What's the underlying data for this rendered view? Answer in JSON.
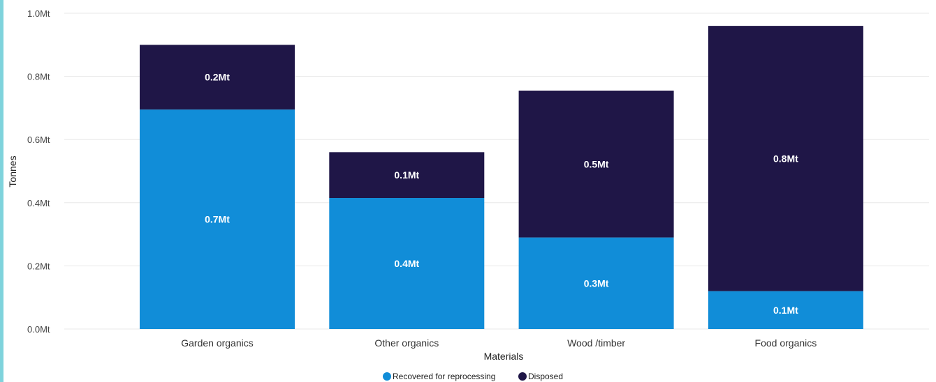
{
  "chart_data": {
    "type": "bar",
    "stacked": true,
    "xlabel": "Materials",
    "ylabel": "Tonnes",
    "ylim": [
      0,
      1.0
    ],
    "yticks": [
      "0.0Mt",
      "0.2Mt",
      "0.4Mt",
      "0.6Mt",
      "0.8Mt",
      "1.0Mt"
    ],
    "ytick_values": [
      0,
      0.2,
      0.4,
      0.6,
      0.8,
      1.0
    ],
    "grid": true,
    "legend_position": "bottom-center",
    "categories": [
      "Garden organics",
      "Other organics",
      "Wood /timber",
      "Food organics"
    ],
    "series": [
      {
        "name": "Recovered for reprocessing",
        "color": "#118dd8",
        "values": [
          0.695,
          0.415,
          0.29,
          0.12
        ],
        "labels": [
          "0.7Mt",
          "0.4Mt",
          "0.3Mt",
          "0.1Mt"
        ]
      },
      {
        "name": "Disposed",
        "color": "#1f1647",
        "values": [
          0.205,
          0.145,
          0.465,
          0.84
        ],
        "labels": [
          "0.2Mt",
          "0.1Mt",
          "0.5Mt",
          "0.8Mt"
        ]
      }
    ]
  }
}
